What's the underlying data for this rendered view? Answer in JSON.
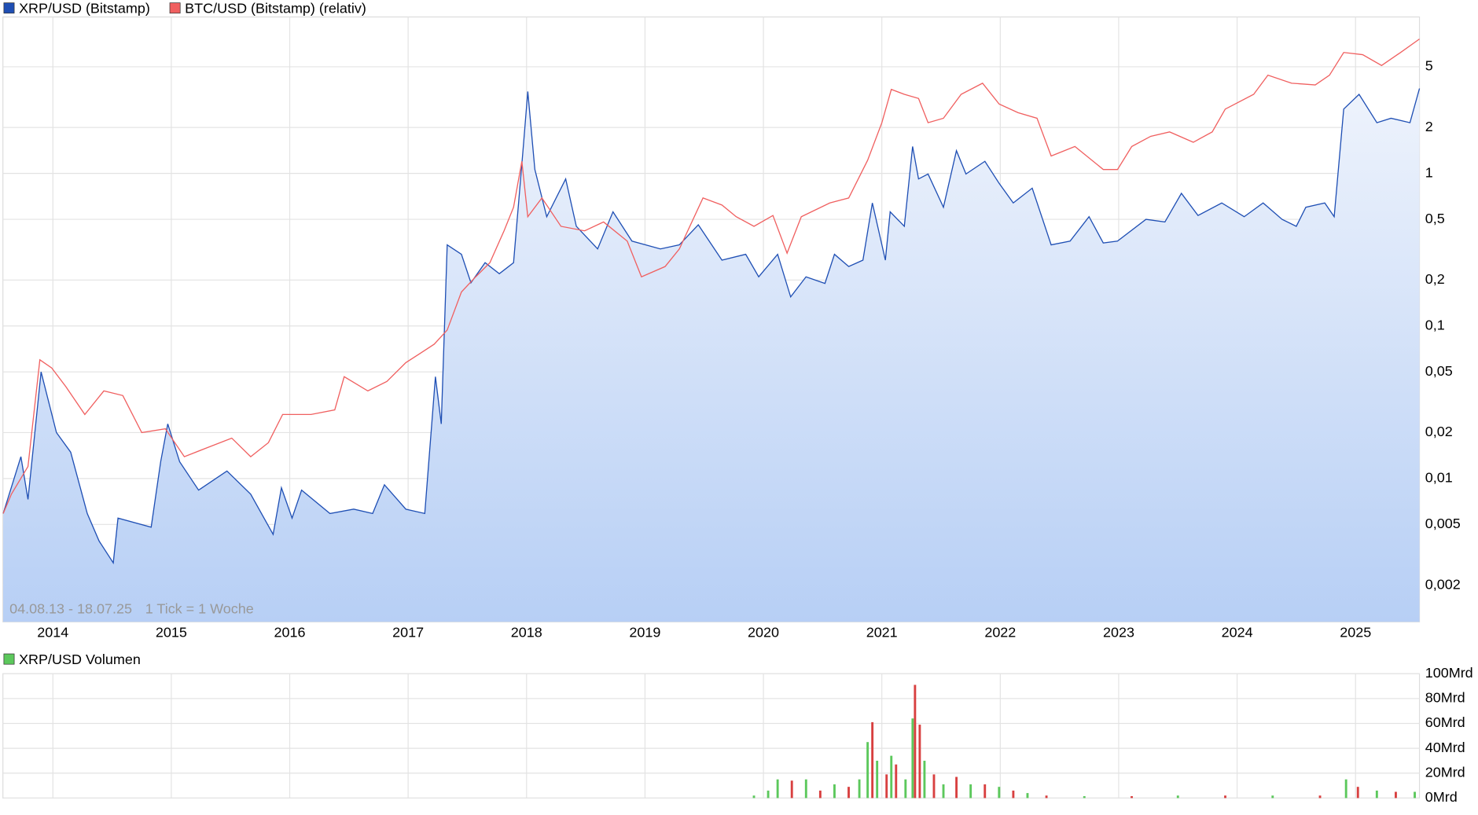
{
  "chart_data": [
    {
      "type": "line",
      "scale": "log",
      "grid": true,
      "note": "04.08.13 - 18.07.25",
      "note2": "1 Tick = 1 Woche",
      "xlim": [
        2013.578,
        2025.54
      ],
      "xticks": [
        2014,
        2015,
        2016,
        2017,
        2018,
        2019,
        2020,
        2021,
        2022,
        2023,
        2024,
        2025
      ],
      "ylim": [
        0.00115,
        10.6
      ],
      "yticks": [
        {
          "value": 0.002,
          "label": "0,002"
        },
        {
          "value": 0.005,
          "label": "0,005"
        },
        {
          "value": 0.01,
          "label": "0,01"
        },
        {
          "value": 0.02,
          "label": "0,02"
        },
        {
          "value": 0.05,
          "label": "0,05"
        },
        {
          "value": 0.1,
          "label": "0,1"
        },
        {
          "value": 0.2,
          "label": "0,2"
        },
        {
          "value": 0.5,
          "label": "0,5"
        },
        1,
        2,
        5
      ],
      "series": [
        {
          "name": "XRP/USD (Bitstamp)",
          "color": "#1f4fb4",
          "fill": true,
          "x": [
            2013.58,
            2013.73,
            2013.79,
            2013.9,
            2014.03,
            2014.15,
            2014.29,
            2014.39,
            2014.51,
            2014.55,
            2014.83,
            2014.91,
            2014.97,
            2015.07,
            2015.23,
            2015.47,
            2015.67,
            2015.86,
            2015.93,
            2016.02,
            2016.1,
            2016.34,
            2016.54,
            2016.7,
            2016.8,
            2016.98,
            2017.14,
            2017.23,
            2017.28,
            2017.33,
            2017.45,
            2017.53,
            2017.65,
            2017.77,
            2017.89,
            2017.97,
            2018.01,
            2018.07,
            2018.17,
            2018.33,
            2018.42,
            2018.6,
            2018.73,
            2018.89,
            2019.13,
            2019.29,
            2019.45,
            2019.65,
            2019.85,
            2019.96,
            2020.12,
            2020.23,
            2020.36,
            2020.52,
            2020.6,
            2020.72,
            2020.84,
            2020.92,
            2021.03,
            2021.07,
            2021.19,
            2021.26,
            2021.31,
            2021.39,
            2021.52,
            2021.63,
            2021.71,
            2021.87,
            2021.99,
            2022.11,
            2022.27,
            2022.43,
            2022.59,
            2022.75,
            2022.87,
            2022.99,
            2023.23,
            2023.39,
            2023.53,
            2023.67,
            2023.87,
            2024.06,
            2024.22,
            2024.38,
            2024.5,
            2024.58,
            2024.74,
            2024.82,
            2024.9,
            2025.03,
            2025.18,
            2025.3,
            2025.46,
            2025.54
          ],
          "values": [
            0.0059,
            0.0139,
            0.0073,
            0.05,
            0.02,
            0.0149,
            0.0059,
            0.0039,
            0.0028,
            0.0055,
            0.0048,
            0.0129,
            0.0228,
            0.0129,
            0.0084,
            0.0112,
            0.0079,
            0.0043,
            0.0087,
            0.0055,
            0.0084,
            0.0059,
            0.0063,
            0.0059,
            0.0091,
            0.0063,
            0.0059,
            0.0465,
            0.0228,
            0.34,
            0.295,
            0.192,
            0.26,
            0.22,
            0.26,
            1.41,
            3.44,
            1.06,
            0.52,
            0.92,
            0.45,
            0.32,
            0.56,
            0.36,
            0.32,
            0.34,
            0.46,
            0.27,
            0.295,
            0.21,
            0.295,
            0.155,
            0.21,
            0.19,
            0.295,
            0.245,
            0.27,
            0.64,
            0.27,
            0.56,
            0.45,
            1.5,
            0.92,
            0.99,
            0.6,
            1.41,
            0.99,
            1.2,
            0.86,
            0.64,
            0.8,
            0.34,
            0.36,
            0.52,
            0.35,
            0.36,
            0.5,
            0.48,
            0.74,
            0.53,
            0.64,
            0.52,
            0.64,
            0.5,
            0.45,
            0.6,
            0.64,
            0.52,
            2.64,
            3.3,
            2.15,
            2.3,
            2.15,
            3.6
          ]
        },
        {
          "name": "BTC/USD (Bitstamp) (relativ)",
          "color": "#f06060",
          "fill": false,
          "x": [
            2013.58,
            2013.65,
            2013.79,
            2013.89,
            2013.99,
            2014.11,
            2014.27,
            2014.43,
            2014.59,
            2014.75,
            2014.95,
            2015.11,
            2015.31,
            2015.51,
            2015.67,
            2015.82,
            2015.94,
            2016.18,
            2016.38,
            2016.46,
            2016.66,
            2016.82,
            2016.98,
            2017.1,
            2017.22,
            2017.33,
            2017.45,
            2017.57,
            2017.69,
            2017.81,
            2017.89,
            2017.96,
            2018.01,
            2018.13,
            2018.29,
            2018.49,
            2018.65,
            2018.85,
            2018.97,
            2019.17,
            2019.29,
            2019.49,
            2019.65,
            2019.77,
            2019.92,
            2020.08,
            2020.2,
            2020.32,
            2020.56,
            2020.72,
            2020.88,
            2021.0,
            2021.08,
            2021.19,
            2021.31,
            2021.39,
            2021.52,
            2021.67,
            2021.85,
            2021.99,
            2022.15,
            2022.31,
            2022.43,
            2022.63,
            2022.87,
            2022.99,
            2023.11,
            2023.27,
            2023.43,
            2023.63,
            2023.79,
            2023.9,
            2024.14,
            2024.26,
            2024.46,
            2024.66,
            2024.78,
            2024.9,
            2025.06,
            2025.22,
            2025.38,
            2025.54
          ],
          "values": [
            0.0059,
            0.0079,
            0.012,
            0.06,
            0.053,
            0.04,
            0.0263,
            0.0375,
            0.035,
            0.02,
            0.0212,
            0.0139,
            0.016,
            0.0184,
            0.0139,
            0.0172,
            0.0263,
            0.0263,
            0.0282,
            0.0465,
            0.0375,
            0.0433,
            0.0575,
            0.066,
            0.076,
            0.094,
            0.167,
            0.21,
            0.26,
            0.42,
            0.6,
            1.2,
            0.52,
            0.69,
            0.45,
            0.42,
            0.48,
            0.36,
            0.21,
            0.245,
            0.32,
            0.69,
            0.62,
            0.52,
            0.45,
            0.53,
            0.3,
            0.52,
            0.64,
            0.69,
            1.22,
            2.15,
            3.55,
            3.3,
            3.1,
            2.15,
            2.3,
            3.3,
            3.9,
            2.85,
            2.5,
            2.3,
            1.3,
            1.5,
            1.06,
            1.06,
            1.5,
            1.75,
            1.87,
            1.6,
            1.87,
            2.64,
            3.3,
            4.4,
            3.9,
            3.8,
            4.4,
            6.2,
            6.0,
            5.1,
            6.2,
            7.6
          ]
        }
      ]
    },
    {
      "type": "bar",
      "name": "XRP/USD Volumen",
      "color": "#5cc85c",
      "x": [
        2019.92,
        2020.04,
        2020.12,
        2020.24,
        2020.36,
        2020.48,
        2020.6,
        2020.72,
        2020.81,
        2020.88,
        2020.92,
        2020.96,
        2021.04,
        2021.08,
        2021.12,
        2021.2,
        2021.26,
        2021.28,
        2021.32,
        2021.36,
        2021.44,
        2021.52,
        2021.63,
        2021.75,
        2021.87,
        2021.99,
        2022.11,
        2022.23,
        2022.39,
        2022.71,
        2023.11,
        2023.5,
        2023.9,
        2024.3,
        2024.7,
        2024.92,
        2025.02,
        2025.18,
        2025.34,
        2025.5
      ],
      "values": [
        2,
        6,
        15,
        14,
        15,
        6,
        11,
        9,
        15,
        45,
        61,
        30,
        19,
        34,
        27,
        15,
        64,
        91,
        59,
        30,
        19,
        11,
        17,
        11,
        11,
        9,
        6,
        4,
        2,
        1.5,
        1.5,
        2,
        2,
        2,
        2,
        15,
        9,
        6,
        5,
        5
      ],
      "colors": [
        "#5cc85c",
        "#5cc85c",
        "#5cc85c",
        "#d84040",
        "#5cc85c",
        "#d84040",
        "#5cc85c",
        "#d84040",
        "#5cc85c",
        "#5cc85c",
        "#d84040",
        "#5cc85c",
        "#d84040",
        "#5cc85c",
        "#d84040",
        "#5cc85c",
        "#5cc85c",
        "#d84040",
        "#d84040",
        "#5cc85c",
        "#d84040",
        "#5cc85c",
        "#d84040",
        "#5cc85c",
        "#d84040",
        "#5cc85c",
        "#d84040",
        "#5cc85c",
        "#d84040",
        "#5cc85c",
        "#d84040",
        "#5cc85c",
        "#d84040",
        "#5cc85c",
        "#d84040",
        "#5cc85c",
        "#d84040",
        "#5cc85c",
        "#d84040",
        "#5cc85c"
      ],
      "ylim": [
        0,
        100
      ],
      "yticks": [
        {
          "value": 0,
          "label": "0Mrd"
        },
        {
          "value": 20,
          "label": "20Mrd"
        },
        {
          "value": 40,
          "label": "40Mrd"
        },
        {
          "value": 60,
          "label": "60Mrd"
        },
        {
          "value": 80,
          "label": "80Mrd"
        },
        {
          "value": 100,
          "label": "100Mrd"
        }
      ]
    }
  ]
}
